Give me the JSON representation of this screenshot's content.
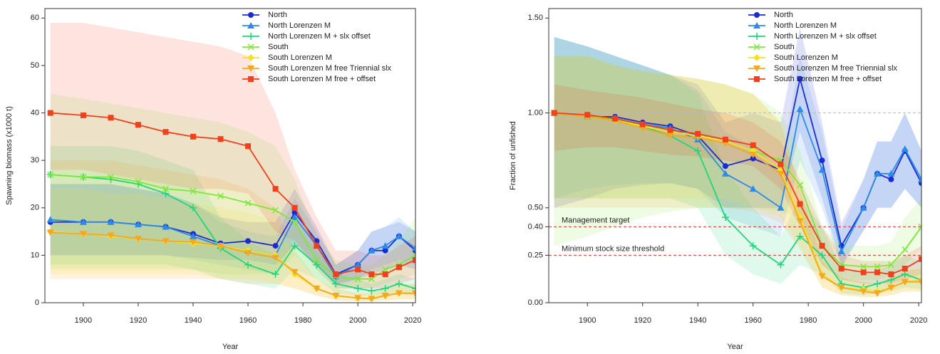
{
  "chart_data": [
    {
      "type": "line",
      "x_label": "Year",
      "y_label": "Spawning biomass (x1000 t)",
      "x": [
        1888,
        1900,
        1910,
        1920,
        1930,
        1940,
        1950,
        1960,
        1970,
        1977,
        1985,
        1992,
        2000,
        2005,
        2010,
        2015,
        2021
      ],
      "xlim": [
        1886,
        2021
      ],
      "xticks": [
        1900,
        1920,
        1940,
        1960,
        1980,
        2000,
        2020
      ],
      "ylim": [
        0,
        62
      ],
      "yticks": [
        0,
        10,
        20,
        30,
        40,
        50,
        60
      ],
      "legend": "top",
      "series": [
        {
          "name": "North",
          "color": "#1c2bd1",
          "marker": "circle",
          "values": [
            17,
            17,
            17,
            16.5,
            16,
            14.5,
            12.5,
            13,
            12,
            19,
            13,
            6,
            8,
            11,
            11,
            14,
            11
          ],
          "lower": [
            10,
            10,
            10,
            10,
            10,
            9.5,
            9,
            9,
            8,
            12,
            8,
            4,
            5,
            6,
            7,
            8,
            7
          ],
          "upper": [
            25,
            25,
            25,
            24,
            23,
            21,
            18,
            17,
            17,
            24,
            16,
            8,
            11,
            15,
            16,
            17,
            15
          ]
        },
        {
          "name": "North Lorenzen M",
          "color": "#2b8be8",
          "marker": "triangle",
          "values": [
            17.5,
            17,
            17,
            16.5,
            16,
            14,
            12,
            11,
            10,
            18,
            12,
            5.5,
            8,
            11,
            12,
            14,
            11.5
          ],
          "lower": [
            10,
            10,
            10,
            10,
            10,
            9,
            8,
            7,
            6,
            13,
            8,
            3.5,
            5,
            7,
            8,
            9,
            8
          ],
          "upper": [
            25,
            25,
            25,
            24,
            23,
            21,
            17,
            15,
            14,
            22,
            15,
            8,
            11,
            15,
            16,
            18,
            15
          ]
        },
        {
          "name": "North Lorenzen M + slx offset",
          "color": "#1fd67a",
          "marker": "plus",
          "values": [
            27,
            26.5,
            26,
            25,
            23,
            20,
            11.5,
            8,
            6,
            12,
            8,
            4,
            3,
            2.5,
            3,
            4,
            3
          ],
          "lower": [
            8,
            8,
            8,
            8,
            8,
            7,
            5,
            4,
            3,
            7,
            5,
            2,
            1.5,
            1.5,
            1.5,
            2,
            1.5
          ],
          "upper": [
            33,
            33,
            33,
            32,
            30,
            28,
            18,
            13,
            10,
            17,
            11,
            6,
            5,
            4,
            5,
            6,
            5
          ]
        },
        {
          "name": "South",
          "color": "#7ee83a",
          "marker": "cross",
          "values": [
            27,
            26.5,
            26.5,
            25.5,
            24,
            23.5,
            22.5,
            21,
            19.5,
            17,
            9,
            5.5,
            5,
            5,
            7,
            8,
            10
          ],
          "lower": [
            7,
            7,
            7,
            7,
            7,
            7,
            6,
            6,
            6,
            10,
            5,
            3,
            3,
            3,
            4,
            5,
            6
          ],
          "upper": [
            44,
            43,
            42,
            41,
            40,
            39,
            38,
            36,
            33,
            26,
            14,
            9,
            8,
            8,
            10,
            13,
            18
          ]
        },
        {
          "name": "South Lorenzen M",
          "color": "#f5e12a",
          "marker": "diamond",
          "values": [
            15,
            14.5,
            14,
            13.5,
            13,
            12.5,
            12,
            11,
            10,
            6,
            3,
            1.5,
            1,
            1,
            1.5,
            2,
            2
          ],
          "lower": [
            6,
            6,
            6,
            6,
            6,
            6,
            5,
            5,
            4,
            3,
            1.5,
            0.5,
            0.3,
            0.3,
            0.5,
            0.7,
            0.7
          ],
          "upper": [
            24,
            24,
            23,
            23,
            22,
            21,
            20,
            19,
            17,
            10,
            5,
            3,
            2,
            2,
            3,
            4,
            4
          ]
        },
        {
          "name": "South Lorenzen M free Triennial slx",
          "color": "#f5a623",
          "marker": "triangle-down",
          "values": [
            14.8,
            14.5,
            14.2,
            13.5,
            13,
            12.8,
            12,
            10.5,
            9.5,
            6.5,
            3,
            1.5,
            1,
            0.8,
            1.5,
            2,
            2
          ],
          "lower": [
            5,
            5,
            5,
            5,
            5,
            5,
            5,
            4,
            4,
            3,
            1.5,
            0.5,
            0.3,
            0.3,
            0.5,
            0.7,
            0.7
          ],
          "upper": [
            30,
            30,
            30,
            29,
            28,
            27,
            26,
            24,
            20,
            11,
            5,
            3,
            2,
            2,
            3,
            4,
            4
          ]
        },
        {
          "name": "South Lorenzen M free + offset",
          "color": "#f0401c",
          "marker": "square",
          "values": [
            40,
            39.5,
            39,
            37.5,
            36,
            35,
            34.5,
            33,
            24,
            20,
            12,
            6,
            7,
            6,
            6,
            7.5,
            9
          ],
          "lower": [
            28,
            28,
            27,
            26,
            25,
            24,
            24,
            23,
            15,
            13,
            7,
            3,
            3,
            3,
            3,
            4,
            5
          ],
          "upper": [
            59,
            59,
            58,
            57,
            56,
            55,
            54,
            52,
            40,
            28,
            18,
            11,
            11,
            10,
            10,
            12,
            14
          ]
        }
      ]
    },
    {
      "type": "line",
      "x_label": "Year",
      "y_label": "Fraction of unfished",
      "x": [
        1888,
        1900,
        1910,
        1920,
        1930,
        1940,
        1950,
        1960,
        1970,
        1977,
        1985,
        1992,
        2000,
        2005,
        2010,
        2015,
        2021
      ],
      "xlim": [
        1886,
        2021
      ],
      "xticks": [
        1900,
        1920,
        1940,
        1960,
        1980,
        2000,
        2020
      ],
      "ylim": [
        0,
        1.55
      ],
      "yticks": [
        {
          "value": 0,
          "label": "0.00"
        },
        0.25,
        {
          "value": 0.4,
          "label": "0.40"
        },
        {
          "value": 0.5,
          "label": "0.50"
        },
        {
          "value": 1,
          "label": "1.00"
        },
        {
          "value": 1.5,
          "label": "1.50"
        }
      ],
      "legend": "top",
      "reference_lines": [
        {
          "value": 0.4,
          "label": "Management target",
          "color": "#e83030"
        },
        {
          "value": 0.25,
          "label": "Minimum stock size threshold",
          "color": "#e83030"
        },
        {
          "value": 1,
          "color": "#bbbbbb"
        }
      ],
      "series": [
        {
          "name": "North",
          "color": "#1c2bd1",
          "marker": "circle",
          "values": [
            1,
            0.98,
            0.98,
            0.95,
            0.93,
            0.88,
            0.72,
            0.76,
            0.7,
            1.18,
            0.75,
            0.3,
            0.5,
            0.68,
            0.65,
            0.8,
            0.63
          ],
          "lower": [
            0.5,
            0.55,
            0.6,
            0.62,
            0.63,
            0.6,
            0.5,
            0.5,
            0.5,
            0.9,
            0.55,
            0.2,
            0.38,
            0.5,
            0.5,
            0.6,
            0.5
          ],
          "upper": [
            1.4,
            1.35,
            1.3,
            1.25,
            1.2,
            1.15,
            0.95,
            1.0,
            0.95,
            1.45,
            0.95,
            0.42,
            0.65,
            0.85,
            0.85,
            1.0,
            0.8
          ]
        },
        {
          "name": "North Lorenzen M",
          "color": "#2b8be8",
          "marker": "triangle",
          "values": [
            1,
            0.98,
            0.97,
            0.94,
            0.92,
            0.86,
            0.68,
            0.6,
            0.5,
            1.02,
            0.7,
            0.27,
            0.5,
            0.68,
            0.68,
            0.81,
            0.65
          ],
          "lower": [
            0.55,
            0.6,
            0.62,
            0.63,
            0.63,
            0.6,
            0.45,
            0.4,
            0.35,
            0.75,
            0.5,
            0.18,
            0.38,
            0.5,
            0.5,
            0.6,
            0.5
          ],
          "upper": [
            1.4,
            1.35,
            1.3,
            1.25,
            1.2,
            1.12,
            0.9,
            0.82,
            0.7,
            1.3,
            0.9,
            0.38,
            0.65,
            0.85,
            0.85,
            1.0,
            0.8
          ]
        },
        {
          "name": "North Lorenzen M + slx offset",
          "color": "#1fd67a",
          "marker": "plus",
          "values": [
            1,
            0.98,
            0.97,
            0.93,
            0.88,
            0.8,
            0.45,
            0.3,
            0.2,
            0.35,
            0.25,
            0.1,
            0.08,
            0.1,
            0.12,
            0.15,
            0.12
          ],
          "lower": [
            0.55,
            0.55,
            0.55,
            0.55,
            0.55,
            0.5,
            0.25,
            0.15,
            0.1,
            0.2,
            0.15,
            0.05,
            0.04,
            0.05,
            0.06,
            0.08,
            0.07
          ],
          "upper": [
            1.4,
            1.35,
            1.3,
            1.25,
            1.2,
            1.1,
            0.7,
            0.5,
            0.35,
            0.55,
            0.4,
            0.18,
            0.15,
            0.17,
            0.2,
            0.25,
            0.22
          ]
        },
        {
          "name": "South",
          "color": "#7ee83a",
          "marker": "cross",
          "values": [
            1,
            0.98,
            0.97,
            0.93,
            0.9,
            0.88,
            0.85,
            0.8,
            0.75,
            0.62,
            0.3,
            0.2,
            0.19,
            0.19,
            0.2,
            0.28,
            0.4
          ],
          "lower": [
            0.3,
            0.35,
            0.4,
            0.45,
            0.48,
            0.5,
            0.5,
            0.5,
            0.48,
            0.45,
            0.2,
            0.12,
            0.12,
            0.12,
            0.14,
            0.2,
            0.28
          ],
          "upper": [
            1.3,
            1.3,
            1.25,
            1.22,
            1.2,
            1.18,
            1.15,
            1.1,
            1.0,
            0.8,
            0.4,
            0.3,
            0.3,
            0.3,
            0.32,
            0.45,
            0.55
          ]
        },
        {
          "name": "South Lorenzen M",
          "color": "#f5e12a",
          "marker": "diamond",
          "values": [
            1,
            0.98,
            0.96,
            0.93,
            0.9,
            0.88,
            0.85,
            0.8,
            0.7,
            0.45,
            0.15,
            0.08,
            0.07,
            0.06,
            0.08,
            0.11,
            0.12
          ],
          "lower": [
            0.55,
            0.55,
            0.55,
            0.55,
            0.55,
            0.55,
            0.55,
            0.5,
            0.45,
            0.3,
            0.08,
            0.04,
            0.03,
            0.03,
            0.04,
            0.06,
            0.06
          ],
          "upper": [
            1.3,
            1.3,
            1.25,
            1.22,
            1.2,
            1.18,
            1.15,
            1.1,
            0.95,
            0.6,
            0.22,
            0.13,
            0.11,
            0.1,
            0.13,
            0.17,
            0.18
          ]
        },
        {
          "name": "South Lorenzen M free Triennial slx",
          "color": "#f5a623",
          "marker": "triangle-down",
          "values": [
            1,
            0.98,
            0.96,
            0.92,
            0.88,
            0.87,
            0.84,
            0.78,
            0.68,
            0.43,
            0.14,
            0.08,
            0.06,
            0.05,
            0.08,
            0.11,
            0.11
          ],
          "lower": [
            0.5,
            0.5,
            0.5,
            0.5,
            0.5,
            0.5,
            0.5,
            0.48,
            0.42,
            0.28,
            0.08,
            0.04,
            0.03,
            0.03,
            0.04,
            0.06,
            0.06
          ],
          "upper": [
            1.3,
            1.3,
            1.25,
            1.22,
            1.2,
            1.18,
            1.15,
            1.1,
            0.95,
            0.6,
            0.22,
            0.13,
            0.11,
            0.1,
            0.13,
            0.17,
            0.18
          ]
        },
        {
          "name": "South Lorenzen M free + offset",
          "color": "#f0401c",
          "marker": "square",
          "values": [
            1,
            0.99,
            0.97,
            0.94,
            0.91,
            0.89,
            0.86,
            0.83,
            0.73,
            0.52,
            0.3,
            0.18,
            0.16,
            0.16,
            0.15,
            0.18,
            0.23
          ],
          "lower": [
            0.8,
            0.82,
            0.82,
            0.8,
            0.78,
            0.77,
            0.75,
            0.72,
            0.6,
            0.4,
            0.2,
            0.12,
            0.1,
            0.1,
            0.1,
            0.12,
            0.15
          ],
          "upper": [
            1.15,
            1.12,
            1.1,
            1.08,
            1.05,
            1.02,
            1.0,
            0.95,
            0.85,
            0.65,
            0.4,
            0.25,
            0.22,
            0.22,
            0.22,
            0.25,
            0.3
          ]
        }
      ]
    }
  ]
}
